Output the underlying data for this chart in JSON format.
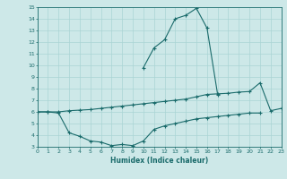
{
  "title": "",
  "xlabel": "Humidex (Indice chaleur)",
  "bg_color": "#cde8e8",
  "line_color": "#1a6b6b",
  "grid_color": "#aad4d4",
  "x_values": [
    0,
    1,
    2,
    3,
    4,
    5,
    6,
    7,
    8,
    9,
    10,
    11,
    12,
    13,
    14,
    15,
    16,
    17,
    18,
    19,
    20,
    21,
    22,
    23
  ],
  "top_y": [
    null,
    null,
    null,
    null,
    null,
    null,
    null,
    null,
    null,
    null,
    9.8,
    11.5,
    12.2,
    14.0,
    14.3,
    14.9,
    13.2,
    7.5,
    null,
    null,
    null,
    null,
    null,
    null
  ],
  "mid_y": [
    6.0,
    6.0,
    6.0,
    6.1,
    6.15,
    6.2,
    6.3,
    6.4,
    6.5,
    6.6,
    6.7,
    6.8,
    6.9,
    7.0,
    7.1,
    7.3,
    7.5,
    7.55,
    7.6,
    7.7,
    7.75,
    8.5,
    6.1,
    6.3
  ],
  "bot_y": [
    6.0,
    6.0,
    5.9,
    4.2,
    3.9,
    3.5,
    3.4,
    3.1,
    3.2,
    3.1,
    3.5,
    4.5,
    4.8,
    5.0,
    5.2,
    5.4,
    5.5,
    5.6,
    5.7,
    5.8,
    5.9,
    5.9,
    null,
    null
  ],
  "ylim": [
    3,
    15
  ],
  "xlim": [
    0,
    23
  ],
  "yticks": [
    3,
    4,
    5,
    6,
    7,
    8,
    9,
    10,
    11,
    12,
    13,
    14,
    15
  ],
  "xticks": [
    0,
    1,
    2,
    3,
    4,
    5,
    6,
    7,
    8,
    9,
    10,
    11,
    12,
    13,
    14,
    15,
    16,
    17,
    18,
    19,
    20,
    21,
    22,
    23
  ]
}
